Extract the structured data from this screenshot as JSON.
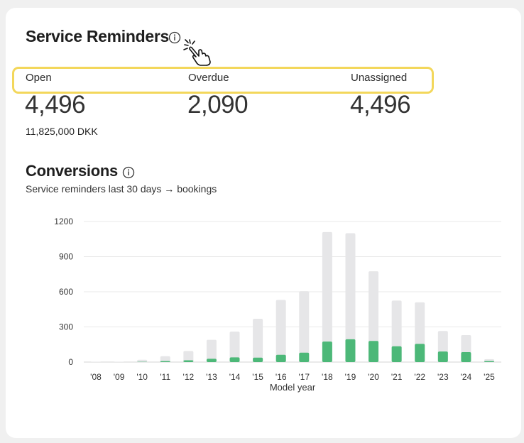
{
  "service_reminders": {
    "title": "Service Reminders",
    "stats": [
      {
        "label": "Open",
        "value": "4,496"
      },
      {
        "label": "Overdue",
        "value": "2,090"
      },
      {
        "label": "Unassigned",
        "value": "4,496"
      }
    ],
    "open_amount": "11,825,000 DKK"
  },
  "conversions": {
    "title": "Conversions",
    "subtitle": "Service reminders last 30 days → bookings"
  },
  "icons": {
    "info": "info-circle-icon",
    "cursor": "pointer-hand-click-icon"
  },
  "colors": {
    "highlight": "#f3d75b",
    "bar_total": "#e6e6e8",
    "bar_converted": "#4cb878"
  },
  "chart_data": {
    "type": "bar",
    "categories": [
      "'08",
      "'09",
      "'10",
      "'11",
      "'12",
      "'13",
      "'14",
      "'15",
      "'16",
      "'17",
      "'18",
      "'19",
      "'20",
      "'21",
      "'22",
      "'23",
      "'24",
      "'25"
    ],
    "series": [
      {
        "values": [
          3,
          3,
          20,
          50,
          95,
          190,
          260,
          370,
          530,
          605,
          1110,
          1100,
          775,
          525,
          510,
          265,
          230,
          25
        ]
      },
      {
        "values": [
          0,
          0,
          2,
          8,
          15,
          28,
          40,
          38,
          62,
          80,
          175,
          195,
          180,
          135,
          155,
          90,
          85,
          8
        ]
      }
    ],
    "xlabel": "Model year",
    "ylabel": "",
    "yticks": [
      0,
      300,
      600,
      900,
      1200
    ],
    "ylim": [
      0,
      1200
    ],
    "grid": true,
    "stacking": "overlay"
  }
}
